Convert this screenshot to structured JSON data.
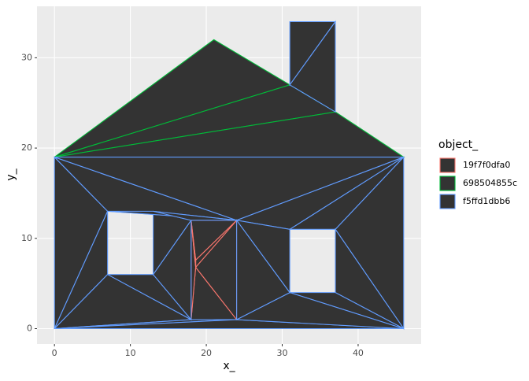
{
  "chart_data": {
    "type": "polygon",
    "x_label": "x_",
    "y_label": "y_",
    "legend_title": "object_",
    "xlim": [
      -2.3,
      48.3
    ],
    "ylim": [
      -1.7,
      35.7
    ],
    "xticks": [
      0,
      10,
      20,
      30,
      40
    ],
    "yticks": [
      0,
      10,
      20,
      30
    ],
    "grid": true,
    "fill": "#333333",
    "series": [
      {
        "name": "19f7f0dfa0",
        "color": "#F8766D",
        "triangles": [
          {
            "x": [
              18,
              24,
              18.6
            ],
            "y": [
              1,
              1,
              6.8
            ]
          },
          {
            "x": [
              24,
              24,
              18.6
            ],
            "y": [
              1,
              12,
              6.8
            ]
          },
          {
            "x": [
              24,
              18.6,
              18.6
            ],
            "y": [
              12,
              7.6,
              6.8
            ]
          },
          {
            "x": [
              18,
              24,
              18.6
            ],
            "y": [
              12,
              12,
              7.6
            ]
          },
          {
            "x": [
              18,
              18.6,
              18
            ],
            "y": [
              1,
              6.8,
              12
            ]
          },
          {
            "x": [
              18,
              18.6,
              18.6
            ],
            "y": [
              12,
              6.8,
              7.6
            ]
          }
        ]
      },
      {
        "name": "698504855c",
        "color": "#00BA38",
        "triangles": [
          {
            "x": [
              0,
              21,
              31
            ],
            "y": [
              19,
              32,
              27
            ]
          },
          {
            "x": [
              0,
              31,
              37
            ],
            "y": [
              19,
              27,
              24
            ]
          },
          {
            "x": [
              0,
              37,
              46
            ],
            "y": [
              19,
              24,
              19
            ]
          }
        ]
      },
      {
        "name": "f5ffd1dbb6",
        "color": "#619CFF",
        "triangles": [
          {
            "x": [
              31,
              31,
              37
            ],
            "y": [
              27,
              34,
              34
            ]
          },
          {
            "x": [
              31,
              37,
              37
            ],
            "y": [
              27,
              34,
              24
            ]
          },
          {
            "x": [
              0,
              0,
              7
            ],
            "y": [
              0,
              19,
              13
            ]
          },
          {
            "x": [
              0,
              7,
              7
            ],
            "y": [
              0,
              13,
              6
            ]
          },
          {
            "x": [
              0,
              7,
              18
            ],
            "y": [
              0,
              6,
              1
            ]
          },
          {
            "x": [
              0,
              18,
              24
            ],
            "y": [
              0,
              1,
              1
            ]
          },
          {
            "x": [
              0,
              24,
              46
            ],
            "y": [
              0,
              1,
              0
            ]
          },
          {
            "x": [
              7,
              13,
              18
            ],
            "y": [
              6,
              6,
              1
            ]
          },
          {
            "x": [
              13,
              18,
              18
            ],
            "y": [
              6,
              1,
              12
            ]
          },
          {
            "x": [
              13,
              13,
              18
            ],
            "y": [
              6,
              13,
              12
            ]
          },
          {
            "x": [
              0,
              7,
              24
            ],
            "y": [
              19,
              13,
              12
            ]
          },
          {
            "x": [
              7,
              13,
              24
            ],
            "y": [
              13,
              13,
              12
            ]
          },
          {
            "x": [
              13,
              18,
              24
            ],
            "y": [
              13,
              12,
              12
            ]
          },
          {
            "x": [
              0,
              24,
              46
            ],
            "y": [
              19,
              12,
              19
            ]
          },
          {
            "x": [
              24,
              31,
              46
            ],
            "y": [
              12,
              11,
              19
            ]
          },
          {
            "x": [
              31,
              37,
              46
            ],
            "y": [
              11,
              11,
              19
            ]
          },
          {
            "x": [
              37,
              46,
              46
            ],
            "y": [
              11,
              0,
              19
            ]
          },
          {
            "x": [
              37,
              37,
              46
            ],
            "y": [
              4,
              11,
              0
            ]
          },
          {
            "x": [
              31,
              37,
              46
            ],
            "y": [
              4,
              4,
              0
            ]
          },
          {
            "x": [
              24,
              31,
              46
            ],
            "y": [
              1,
              4,
              0
            ]
          },
          {
            "x": [
              24,
              24,
              31
            ],
            "y": [
              1,
              12,
              4
            ]
          },
          {
            "x": [
              24,
              31,
              31
            ],
            "y": [
              12,
              4,
              11
            ]
          }
        ]
      }
    ]
  }
}
